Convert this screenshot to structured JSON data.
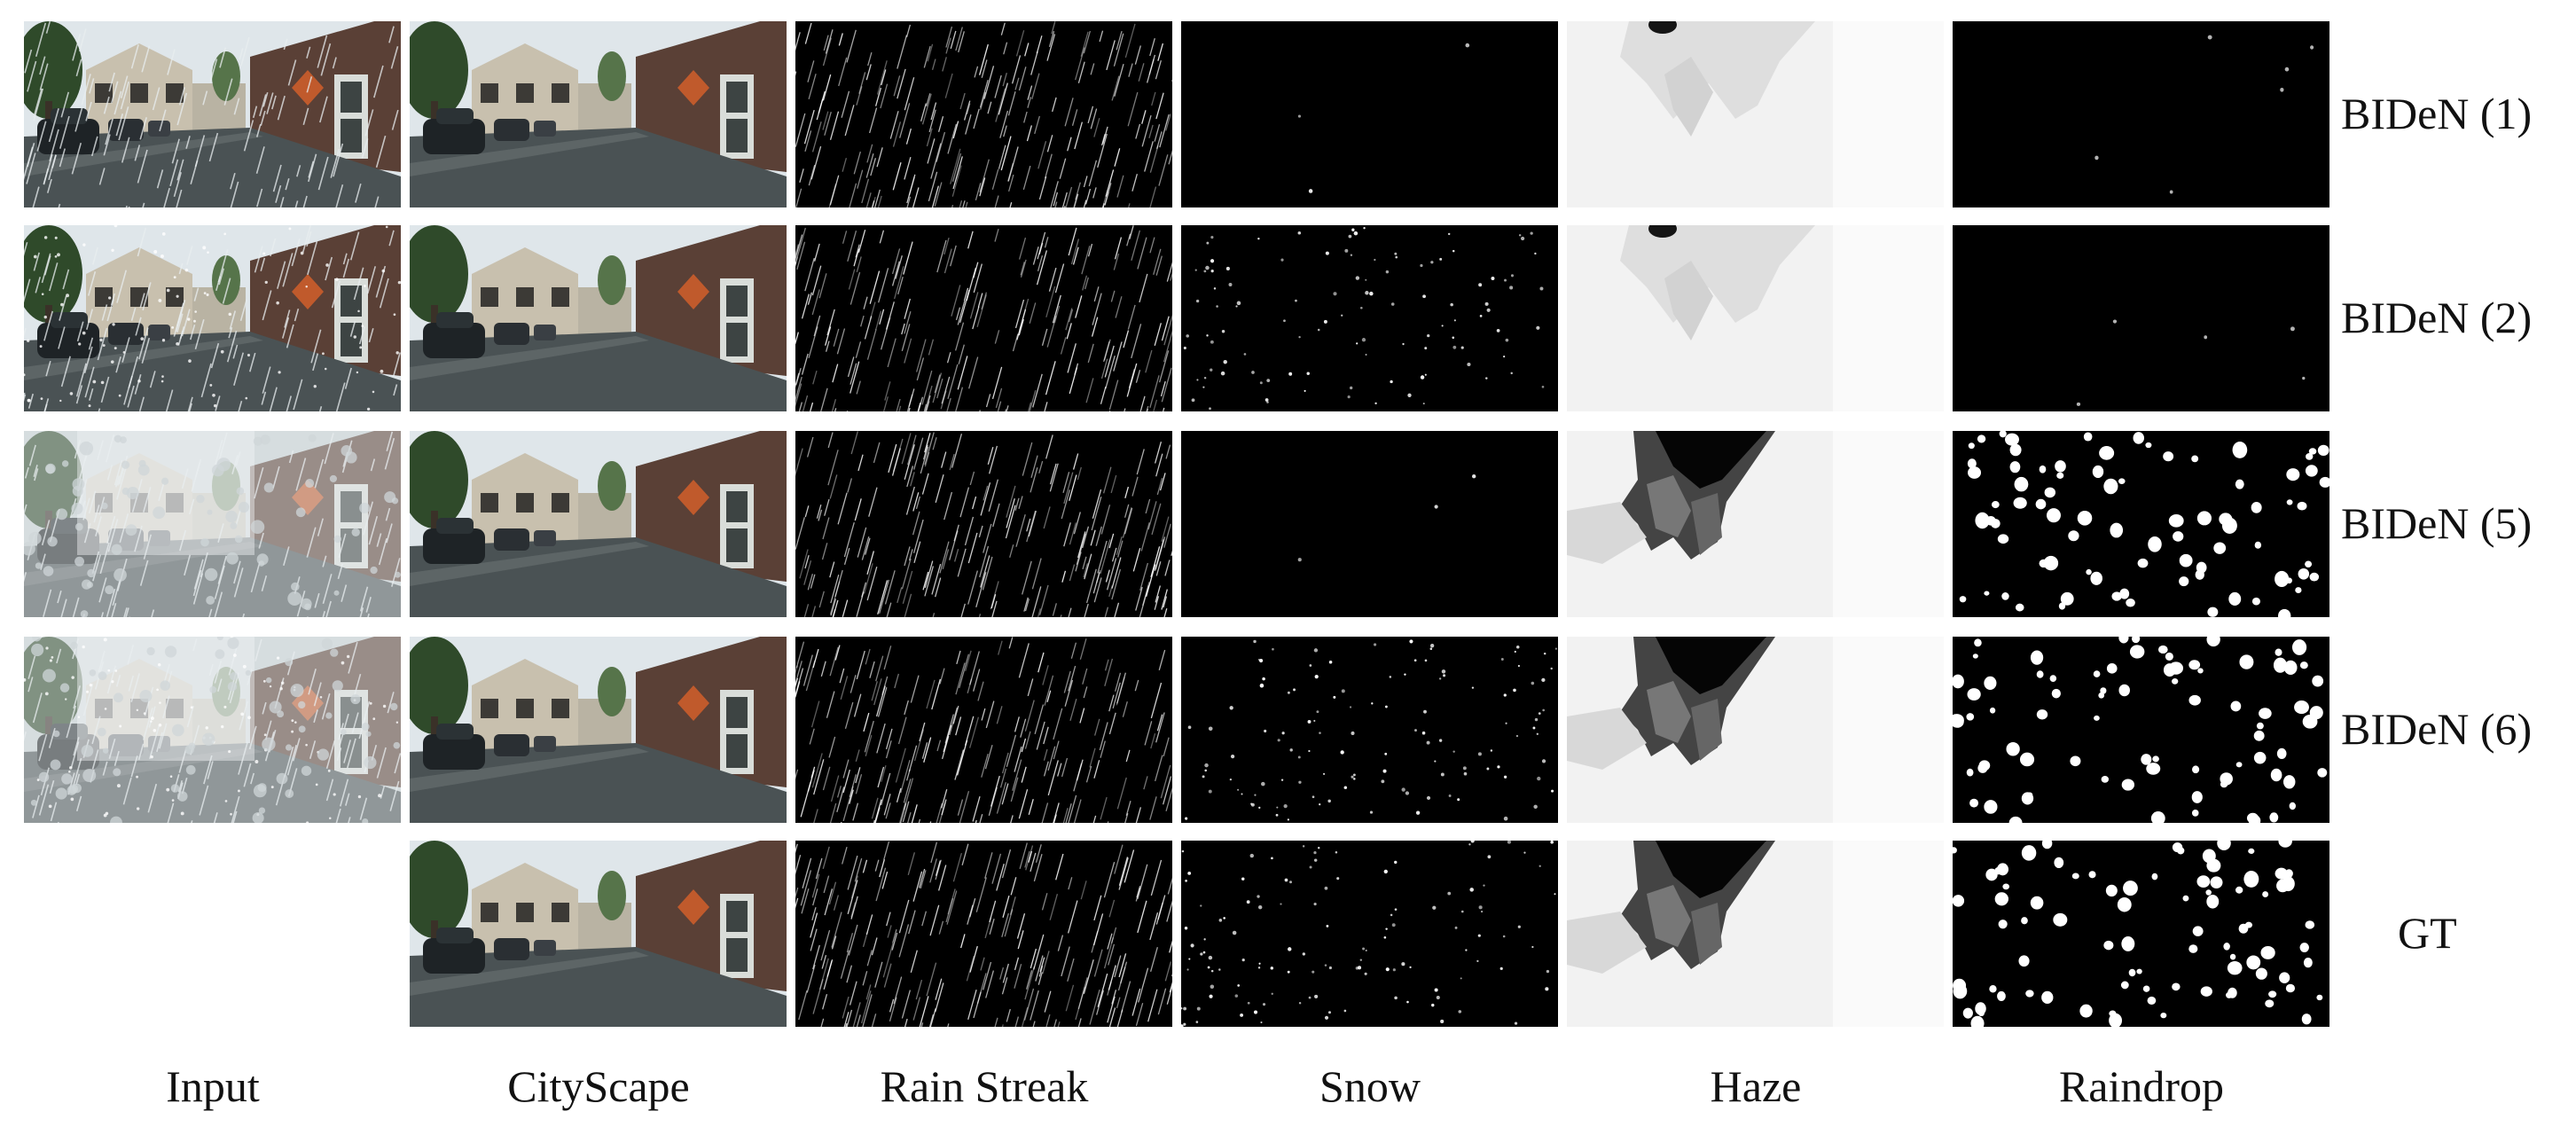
{
  "columns": [
    "Input",
    "CityScape",
    "Rain Streak",
    "Snow",
    "Haze",
    "Raindrop"
  ],
  "rows": [
    "BIDeN (1)",
    "BIDeN (2)",
    "BIDeN (5)",
    "BIDeN (6)",
    "GT"
  ],
  "colors": {
    "background": "#ffffff",
    "text": "#111111",
    "mask_dark": "#000000",
    "mask_light": "#ffffff",
    "scene_sky": "#dfe6ea",
    "scene_road": "#4a5254",
    "scene_building": "#5a4036"
  }
}
